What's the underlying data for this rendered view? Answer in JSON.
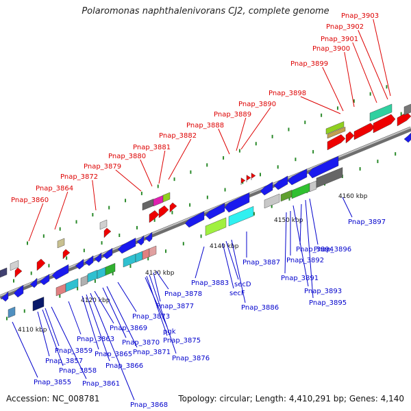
{
  "title": "Polaromonas naphthalenivorans CJ2, complete genome",
  "accession": "Accession: NC_008781",
  "topology": "Topology: circular; Length: 4,410,291 bp; Genes: 4,140",
  "colors": {
    "backbone": "#8a8a8a",
    "forward_label": "#dd0000",
    "reverse_label": "#0000cc",
    "forward_gene": "#ee0000",
    "reverse_gene": "#1a1aee",
    "tick": "#2a8a2a"
  },
  "scale_labels": [
    "4110 kbp",
    "4120 kbp",
    "4130 kbp",
    "4140 kbp",
    "4150 kbp",
    "4160 kbp"
  ],
  "forward_labels": [
    "Pnap_3860",
    "Pnap_3864",
    "Pnap_3872",
    "Pnap_3879",
    "Pnap_3880",
    "Pnap_3881",
    "Pnap_3882",
    "Pnap_3888",
    "Pnap_3889",
    "Pnap_3890",
    "Pnap_3898",
    "Pnap_3899",
    "Pnap_3900",
    "Pnap_3901",
    "Pnap_3902",
    "Pnap_3903"
  ],
  "reverse_labels": [
    "Pnap_3855",
    "Pnap_3857",
    "Pnap_3858",
    "Pnap_3859",
    "Pnap_3861",
    "Pnap_3863",
    "Pnap_3865",
    "Pnap_3866",
    "Pnap_3868",
    "Pnap_3869",
    "Pnap_3870",
    "Pnap_3871",
    "Pnap_3873",
    "pgk",
    "Pnap_3875",
    "Pnap_3876",
    "Pnap_3877",
    "Pnap_3878",
    "Pnap_3883",
    "secF",
    "secD",
    "Pnap_3886",
    "Pnap_3887",
    "Pnap_3891",
    "Pnap_3892",
    "Pnap_3893",
    "Pnap_3894",
    "Pnap_3895",
    "Pnap_3896",
    "Pnap_3897"
  ]
}
